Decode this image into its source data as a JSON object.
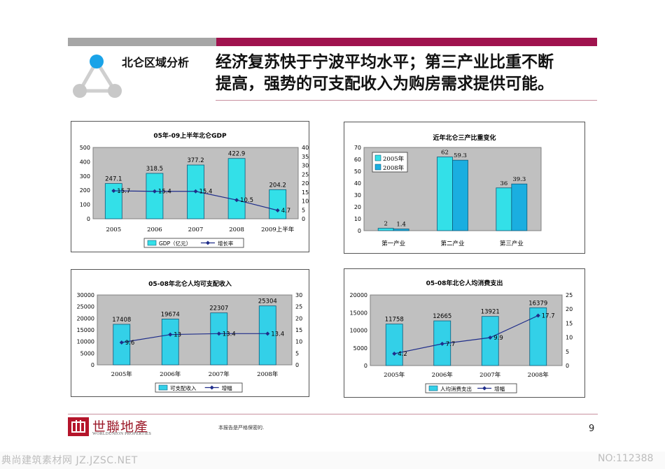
{
  "header": {
    "section_label": "北仑区域分析",
    "headline_line1": "经济复苏快于宁波平均水平；第三产业比重不断",
    "headline_line2": "提高，强势的可支配收入为购房需求提供可能。",
    "colors": {
      "accent": "#a0134e",
      "gray_bar": "#a6a6a6",
      "node_blue": "#1aa3e8",
      "node_gray": "#c8c8c8"
    },
    "icon": "triangle-network-icon"
  },
  "chart_data": [
    {
      "id": "gdp",
      "type": "bar",
      "title": "05年-09上半年北仑GDP",
      "categories": [
        "2005",
        "2006",
        "2007",
        "2008",
        "2009上半年"
      ],
      "series": [
        {
          "name": "GDP（亿元）",
          "type": "bar",
          "axis": "left",
          "values": [
            247.1,
            318.5,
            377.2,
            422.9,
            204.2
          ],
          "color": "#33e0e8"
        },
        {
          "name": "增长率",
          "type": "line",
          "axis": "right",
          "values": [
            15.7,
            15.4,
            15.4,
            10.5,
            4.7
          ],
          "color": "#1f2d8a"
        }
      ],
      "y_left": {
        "range": [
          0,
          500
        ],
        "ticks": [
          "0",
          "100",
          "200",
          "300",
          "400",
          "500"
        ]
      },
      "y_right": {
        "range": [
          0,
          40
        ],
        "ticks": [
          "0",
          "5",
          "10",
          "15",
          "20",
          "25",
          "30",
          "35",
          "40"
        ]
      },
      "plot_background": "#c0c0c0",
      "legend_placement": "bottom"
    },
    {
      "id": "industry",
      "type": "bar",
      "title": "近年北仑三产比重变化",
      "categories": [
        "第一产业",
        "第二产业",
        "第三产业"
      ],
      "series": [
        {
          "name": "2005年",
          "values": [
            2,
            62,
            36
          ],
          "labels": [
            "2",
            "62",
            "36"
          ],
          "color": "#33e0e8"
        },
        {
          "name": "2008年",
          "values": [
            1.4,
            59.3,
            39.3
          ],
          "labels": [
            "1.4",
            "59.3",
            "39.3"
          ],
          "color": "#1aaee0"
        }
      ],
      "y_left": {
        "range": [
          0,
          70
        ],
        "ticks": [
          "0",
          "10",
          "20",
          "30",
          "40",
          "50",
          "60",
          "70"
        ]
      },
      "plot_background": "#c0c0c0",
      "legend_placement": "top-left"
    },
    {
      "id": "income",
      "type": "bar",
      "title": "05-08年北仑人均可支配收入",
      "categories": [
        "2005年",
        "2006年",
        "2007年",
        "2008年"
      ],
      "series": [
        {
          "name": "可支配收入",
          "type": "bar",
          "axis": "left",
          "values": [
            17408,
            19674,
            22307,
            25304
          ],
          "color": "#33d0e8"
        },
        {
          "name": "增幅",
          "type": "line",
          "axis": "right",
          "values": [
            9.6,
            13,
            13.4,
            13.4
          ],
          "color": "#1f2d8a"
        }
      ],
      "y_left": {
        "range": [
          0,
          30000
        ],
        "ticks": [
          "0",
          "5000",
          "10000",
          "15000",
          "20000",
          "25000",
          "30000"
        ]
      },
      "y_right": {
        "range": [
          0,
          30
        ],
        "ticks": [
          "0",
          "5",
          "10",
          "15",
          "20",
          "25",
          "30"
        ]
      },
      "plot_background": "#c0c0c0",
      "legend_placement": "bottom"
    },
    {
      "id": "consumption",
      "type": "bar",
      "title": "05-08年北仑人均消费支出",
      "categories": [
        "2005年",
        "2006年",
        "2007年",
        "2008年"
      ],
      "series": [
        {
          "name": "人均消费支出",
          "type": "bar",
          "axis": "left",
          "values": [
            11758,
            12665,
            13921,
            16379
          ],
          "color": "#33d0e8"
        },
        {
          "name": "增幅",
          "type": "line",
          "axis": "right",
          "values": [
            4.2,
            7.7,
            9.9,
            17.7
          ],
          "color": "#1f2d8a"
        }
      ],
      "y_left": {
        "range": [
          0,
          20000
        ],
        "ticks": [
          "0",
          "5000",
          "10000",
          "15000",
          "20000"
        ]
      },
      "y_right": {
        "range": [
          0,
          25
        ],
        "ticks": [
          "0",
          "5",
          "10",
          "15",
          "20",
          "25"
        ]
      },
      "plot_background": "#c0c0c0",
      "legend_placement": "bottom"
    }
  ],
  "footer": {
    "logo_cn": "世聯地產",
    "logo_en": "WORLDUNION PROPERTIES",
    "confidential": "本报告是严格保密的.",
    "page_number": "9"
  },
  "watermark": {
    "left": "典尚建筑素材网 JZ.JZSC.NET",
    "right": "NO:112388"
  }
}
